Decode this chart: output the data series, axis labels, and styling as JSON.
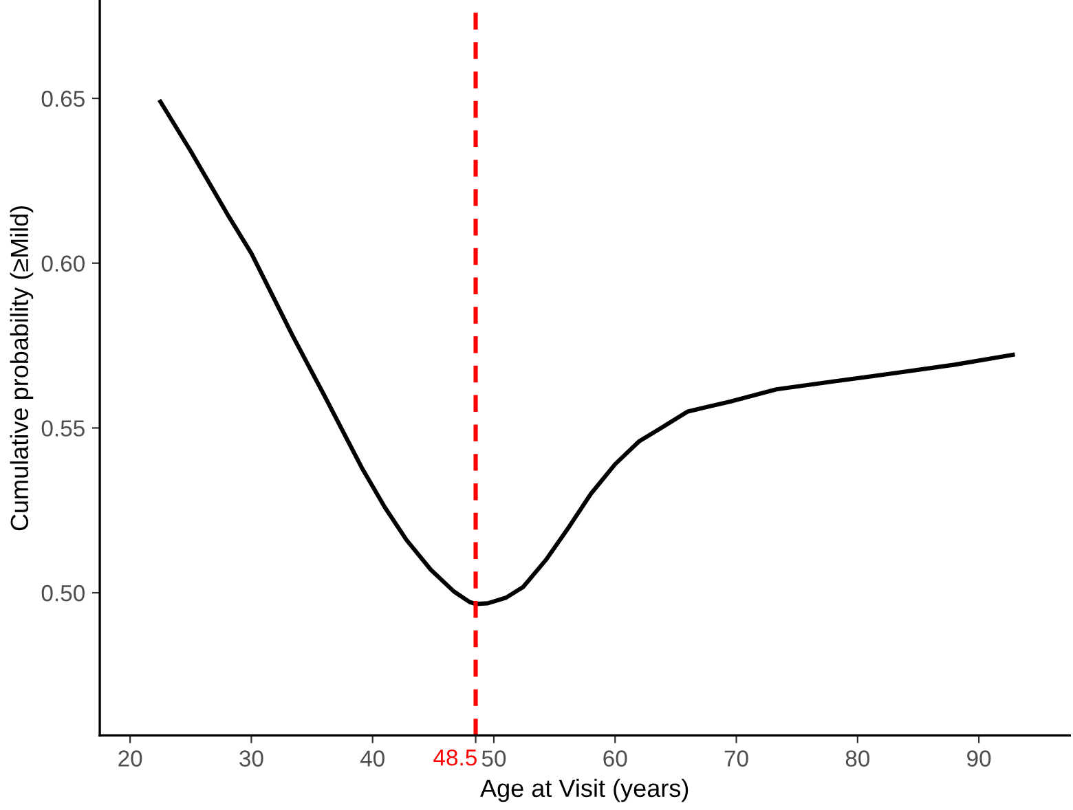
{
  "chart_data": {
    "type": "line",
    "xlabel": "Age at Visit (years)",
    "ylabel": "Cumulative probability (≥Mild)",
    "series": [
      {
        "color": "#000000",
        "x": [
          22.5,
          25,
          28,
          30,
          33.4,
          36,
          39.1,
          41,
          42.8,
          44.8,
          46.7,
          48,
          48.5,
          49.5,
          51,
          52.4,
          54.3,
          56.2,
          58,
          60,
          62,
          63.8,
          66,
          69.5,
          73.3,
          78,
          83,
          88,
          92.8
        ],
        "values": [
          0.649,
          0.634,
          0.615,
          0.603,
          0.578,
          0.56,
          0.538,
          0.526,
          0.516,
          0.507,
          0.5004,
          0.4972,
          0.4966,
          0.4968,
          0.4985,
          0.5017,
          0.51,
          0.52,
          0.53,
          0.539,
          0.546,
          0.55,
          0.555,
          0.558,
          0.5617,
          0.5641,
          0.5666,
          0.5692,
          0.5722
        ]
      }
    ],
    "xlim": [
      17.5,
      97.5
    ],
    "ylim": [
      0.4567,
      0.6796
    ],
    "xticks": [
      20,
      30,
      40,
      {
        "value": 48.5,
        "label": null
      },
      50,
      60,
      70,
      80,
      90
    ],
    "yticks": [
      {
        "value": 0.5,
        "label": "0.50"
      },
      {
        "value": 0.55,
        "label": "0.55"
      },
      {
        "value": 0.6,
        "label": "0.60"
      },
      {
        "value": 0.65,
        "label": "0.65"
      }
    ],
    "ref_lines": [
      {
        "axis": "x",
        "value": 48.5,
        "color": "#ff0000",
        "line_style": "dashed",
        "label": "48.5"
      }
    ],
    "grid": false,
    "legend": false,
    "marker": "none",
    "line_style": "solid"
  }
}
